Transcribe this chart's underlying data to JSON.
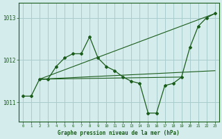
{
  "title": "Graphe pression niveau de la mer (hPa)",
  "background_color": "#d4ecec",
  "grid_color": "#aacccc",
  "line_color": "#1a5c1a",
  "x_hours": [
    0,
    1,
    2,
    3,
    4,
    5,
    6,
    7,
    8,
    9,
    10,
    11,
    12,
    13,
    14,
    15,
    16,
    17,
    18,
    19,
    20,
    21,
    22,
    23
  ],
  "pressure_main": [
    1011.15,
    1011.15,
    1011.55,
    1011.55,
    1011.85,
    1012.05,
    1012.15,
    1012.15,
    1012.55,
    1012.05,
    1011.85,
    1011.75,
    1011.6,
    1011.5,
    1011.45,
    1010.75,
    1010.75,
    1011.4,
    1011.45,
    1011.6,
    1012.3,
    1012.8,
    1013.0,
    1013.1
  ],
  "trend1_x": [
    2,
    23
  ],
  "trend1_y": [
    1011.55,
    1013.1
  ],
  "trend2_x": [
    2,
    23
  ],
  "trend2_y": [
    1011.55,
    1011.75
  ],
  "trend3_x": [
    2,
    19
  ],
  "trend3_y": [
    1011.55,
    1011.6
  ],
  "ylim_min": 1010.55,
  "ylim_max": 1013.35,
  "xlim_min": -0.5,
  "xlim_max": 23.5,
  "yticks": [
    1011,
    1012,
    1013
  ],
  "xticks": [
    0,
    1,
    2,
    3,
    4,
    5,
    6,
    7,
    8,
    9,
    10,
    11,
    12,
    13,
    14,
    15,
    16,
    17,
    18,
    19,
    20,
    21,
    22,
    23
  ]
}
